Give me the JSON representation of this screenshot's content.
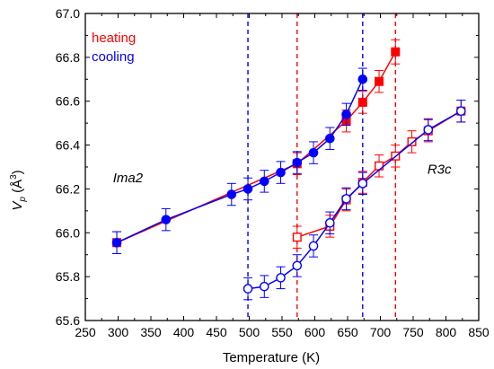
{
  "chart_data": {
    "type": "scatter",
    "xlabel": "Temperature (K)",
    "ylabel_main": "V",
    "ylabel_sub": "p",
    "ylabel_unit": " (Å",
    "ylabel_sup": "3",
    "ylabel_close": ")",
    "xlim": [
      250,
      850
    ],
    "ylim": [
      65.6,
      67.0
    ],
    "x_ticks": [
      250,
      300,
      350,
      400,
      450,
      500,
      550,
      600,
      650,
      700,
      750,
      800,
      850
    ],
    "y_ticks": [
      65.6,
      65.8,
      66.0,
      66.2,
      66.4,
      66.6,
      66.8,
      67.0
    ],
    "legend": [
      {
        "label": "heating",
        "color": "#ff0000"
      },
      {
        "label": "cooling",
        "color": "#0000ff"
      }
    ],
    "annotations": [
      {
        "text": "Ima2",
        "x": 315,
        "y": 66.23
      },
      {
        "text": "R3c",
        "x": 790,
        "y": 66.27
      }
    ],
    "vlines": [
      {
        "x": 498,
        "color": "#0000ff"
      },
      {
        "x": 573,
        "color": "#ff0000"
      },
      {
        "x": 673,
        "color": "#0000ff"
      },
      {
        "x": 723,
        "color": "#ff0000"
      }
    ],
    "series": [
      {
        "name": "heating",
        "color": "#ff0000",
        "marker": "square",
        "filled": true,
        "points": [
          {
            "x": 298,
            "y": 65.955,
            "err": 0.05
          },
          {
            "x": 573,
            "y": 66.315,
            "err": 0.05
          },
          {
            "x": 648,
            "y": 66.51,
            "err": 0.05
          },
          {
            "x": 673,
            "y": 66.595,
            "err": 0.05
          },
          {
            "x": 698,
            "y": 66.69,
            "err": 0.05
          },
          {
            "x": 723,
            "y": 66.825,
            "err": 0.055
          }
        ]
      },
      {
        "name": "heating",
        "color": "#ff0000",
        "marker": "square",
        "filled": false,
        "points": [
          {
            "x": 573,
            "y": 65.98,
            "err": 0.05
          },
          {
            "x": 623,
            "y": 66.03,
            "err": 0.05
          },
          {
            "x": 648,
            "y": 66.15,
            "err": 0.05
          },
          {
            "x": 673,
            "y": 66.23,
            "err": 0.05
          },
          {
            "x": 698,
            "y": 66.305,
            "err": 0.05
          },
          {
            "x": 723,
            "y": 66.35,
            "err": 0.05
          },
          {
            "x": 748,
            "y": 66.415,
            "err": 0.05
          },
          {
            "x": 773,
            "y": 66.465,
            "err": 0.05
          },
          {
            "x": 823,
            "y": 66.555,
            "err": 0.05
          }
        ]
      },
      {
        "name": "cooling",
        "color": "#0000ff",
        "marker": "circle",
        "filled": true,
        "points": [
          {
            "x": 298,
            "y": 65.955,
            "err": 0.05
          },
          {
            "x": 373,
            "y": 66.06,
            "err": 0.05
          },
          {
            "x": 473,
            "y": 66.175,
            "err": 0.05
          },
          {
            "x": 498,
            "y": 66.2,
            "err": 0.05
          },
          {
            "x": 523,
            "y": 66.235,
            "err": 0.05
          },
          {
            "x": 548,
            "y": 66.275,
            "err": 0.05
          },
          {
            "x": 573,
            "y": 66.32,
            "err": 0.05
          },
          {
            "x": 598,
            "y": 66.365,
            "err": 0.05
          },
          {
            "x": 623,
            "y": 66.43,
            "err": 0.05
          },
          {
            "x": 648,
            "y": 66.54,
            "err": 0.05
          },
          {
            "x": 673,
            "y": 66.7,
            "err": 0.05
          }
        ]
      },
      {
        "name": "cooling",
        "color": "#0000ff",
        "marker": "circle",
        "filled": false,
        "points": [
          {
            "x": 498,
            "y": 65.745,
            "err": 0.05
          },
          {
            "x": 523,
            "y": 65.755,
            "err": 0.05
          },
          {
            "x": 548,
            "y": 65.795,
            "err": 0.05
          },
          {
            "x": 573,
            "y": 65.85,
            "err": 0.05
          },
          {
            "x": 598,
            "y": 65.94,
            "err": 0.05
          },
          {
            "x": 623,
            "y": 66.045,
            "err": 0.05
          },
          {
            "x": 648,
            "y": 66.155,
            "err": 0.05
          },
          {
            "x": 673,
            "y": 66.225,
            "err": 0.05
          },
          {
            "x": 773,
            "y": 66.47,
            "err": 0.05
          },
          {
            "x": 823,
            "y": 66.555,
            "err": 0.05
          }
        ]
      }
    ]
  }
}
